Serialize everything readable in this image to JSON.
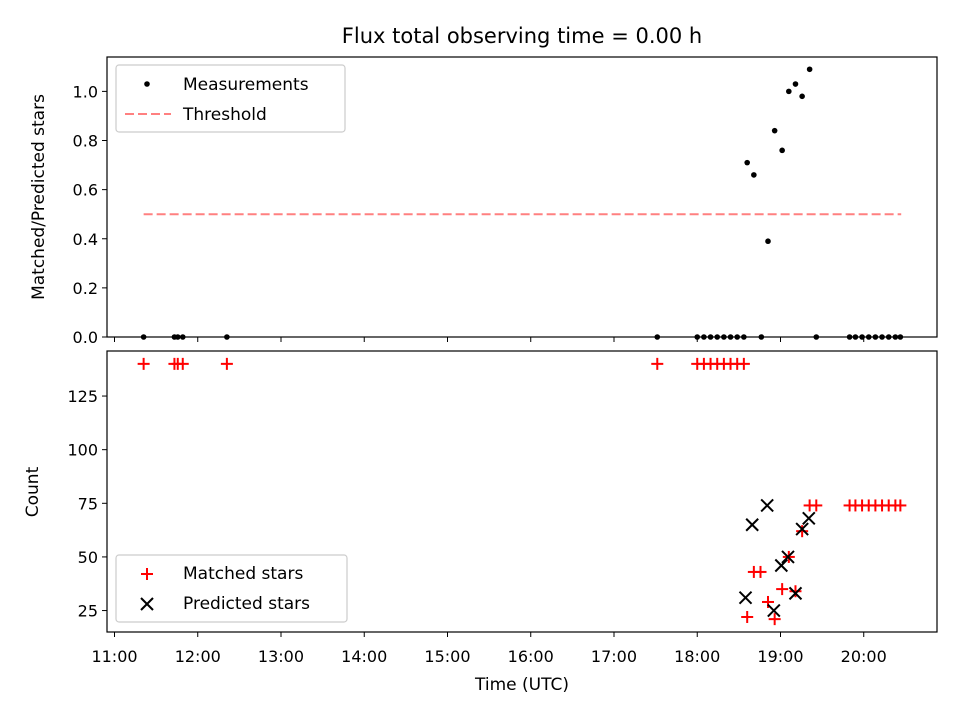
{
  "chart_data": {
    "type": "scatter",
    "title": "Flux total observing time = 0.00 h",
    "xlabel": "Time (UTC)",
    "xlim_hours": [
      10.91,
      20.88
    ],
    "x_ticks": [
      {
        "h": 11,
        "label": "11:00"
      },
      {
        "h": 12,
        "label": "12:00"
      },
      {
        "h": 13,
        "label": "13:00"
      },
      {
        "h": 14,
        "label": "14:00"
      },
      {
        "h": 15,
        "label": "15:00"
      },
      {
        "h": 16,
        "label": "16:00"
      },
      {
        "h": 17,
        "label": "17:00"
      },
      {
        "h": 18,
        "label": "18:00"
      },
      {
        "h": 19,
        "label": "19:00"
      },
      {
        "h": 20,
        "label": "20:00"
      }
    ],
    "panels": [
      {
        "id": "ratio",
        "ylabel": "Matched/Predicted stars",
        "ylim": [
          0,
          1.14
        ],
        "y_ticks": [
          {
            "v": 0.0,
            "label": "0.0"
          },
          {
            "v": 0.2,
            "label": "0.2"
          },
          {
            "v": 0.4,
            "label": "0.4"
          },
          {
            "v": 0.6,
            "label": "0.6"
          },
          {
            "v": 0.8,
            "label": "0.8"
          },
          {
            "v": 1.0,
            "label": "1.0"
          }
        ],
        "legend": [
          {
            "label": "Measurements",
            "marker": "dot",
            "color": "#000000"
          },
          {
            "label": "Threshold",
            "marker": "dashed-line",
            "color": "#ff8080"
          }
        ],
        "threshold": {
          "x": [
            11.35,
            20.45
          ],
          "y": 0.5,
          "color": "#ff8080"
        },
        "measurements": {
          "color": "#000000",
          "x": [
            11.35,
            11.72,
            11.76,
            11.82,
            12.35,
            17.52,
            18.0,
            18.08,
            18.16,
            18.24,
            18.32,
            18.4,
            18.48,
            18.56,
            18.77,
            19.43,
            19.83,
            19.9,
            19.98,
            20.06,
            20.14,
            20.22,
            20.3,
            20.38,
            20.44,
            18.6,
            18.68,
            18.85,
            18.93,
            19.02,
            19.1,
            19.18,
            19.26,
            19.35
          ],
          "y": [
            0,
            0,
            0,
            0,
            0,
            0,
            0,
            0,
            0,
            0,
            0,
            0,
            0,
            0,
            0,
            0,
            0,
            0,
            0,
            0,
            0,
            0,
            0,
            0,
            0,
            0.71,
            0.66,
            0.39,
            0.84,
            0.76,
            1.0,
            1.03,
            0.98,
            1.09
          ]
        }
      },
      {
        "id": "counts",
        "ylabel": "Count",
        "ylim": [
          15,
          146
        ],
        "y_ticks": [
          {
            "v": 25,
            "label": "25"
          },
          {
            "v": 50,
            "label": "50"
          },
          {
            "v": 75,
            "label": "75"
          },
          {
            "v": 100,
            "label": "100"
          },
          {
            "v": 125,
            "label": "125"
          }
        ],
        "legend": [
          {
            "label": "Matched stars",
            "marker": "plus",
            "color": "#ff0000"
          },
          {
            "label": "Predicted stars",
            "marker": "x",
            "color": "#000000"
          }
        ],
        "matched": {
          "color": "#ff0000",
          "x": [
            11.35,
            11.72,
            11.76,
            11.82,
            12.35,
            17.52,
            18.0,
            18.08,
            18.16,
            18.24,
            18.32,
            18.4,
            18.48,
            18.56,
            18.6,
            18.68,
            18.76,
            18.85,
            18.93,
            19.02,
            19.1,
            19.18,
            19.26,
            19.35,
            19.43,
            19.83,
            19.9,
            19.98,
            20.06,
            20.14,
            20.22,
            20.3,
            20.38,
            20.44
          ],
          "y": [
            140,
            140,
            140,
            140,
            140,
            140,
            140,
            140,
            140,
            140,
            140,
            140,
            140,
            140,
            22,
            43,
            43,
            29,
            21,
            35,
            50,
            34,
            62,
            74,
            74,
            74,
            74,
            74,
            74,
            74,
            74,
            74,
            74,
            74
          ]
        },
        "predicted": {
          "color": "#000000",
          "x": [
            18.58,
            18.66,
            18.84,
            18.92,
            19.01,
            19.09,
            19.18,
            19.26,
            19.34
          ],
          "y": [
            31,
            65,
            74,
            25,
            46,
            50,
            33,
            63,
            68
          ]
        }
      }
    ]
  }
}
